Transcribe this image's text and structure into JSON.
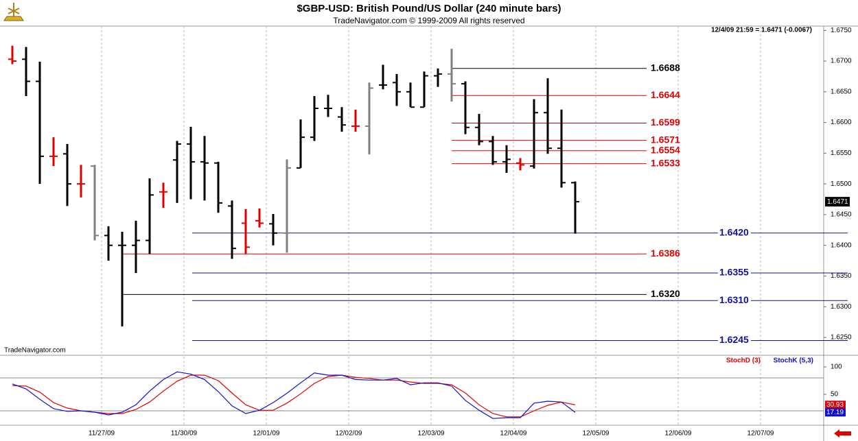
{
  "chart_data": [
    {
      "type": "ohlc",
      "title": "$GBP-USD:  British Pound/US Dollar  (240 minute bars)",
      "subtitle": "TradeNavigator.com © 1999-2009 All rights reserved",
      "quote": "12/4/09 21:59 = 1.6471 (-0.0067)",
      "watermark": "TradeNavigator.com",
      "categories": [
        null,
        null,
        null,
        null,
        null,
        null,
        null,
        null,
        null,
        null,
        null,
        null,
        null,
        null,
        null,
        null,
        null,
        null,
        null,
        null,
        null,
        null,
        null,
        null,
        null,
        null,
        null,
        null,
        null,
        null,
        null,
        null,
        null,
        null,
        null,
        null,
        null,
        null,
        null,
        null,
        null,
        null
      ],
      "x_labels": [
        "11/27/09",
        "11/30/09",
        "12/01/09",
        "12/02/09",
        "12/03/09",
        "12/04/09",
        "12/05/09",
        "12/06/09",
        "12/07/09"
      ],
      "open": [
        1.6703,
        1.6703,
        1.6667,
        1.6545,
        1.6549,
        1.65,
        1.6529,
        1.6416,
        1.64,
        1.64,
        1.6408,
        1.6487,
        1.6539,
        1.6565,
        1.6536,
        1.6534,
        1.6464,
        1.6436,
        1.644,
        1.6435,
        1.642,
        1.6526,
        1.6576,
        1.6623,
        1.6609,
        1.6594,
        1.6594,
        1.6661,
        1.6665,
        1.665,
        1.6625,
        1.6676,
        1.6679,
        1.6663,
        1.6592,
        1.6569,
        1.6536,
        1.6534,
        1.6529,
        1.6616,
        1.6558,
        1.6502
      ],
      "high": [
        1.6725,
        1.6723,
        1.6699,
        1.6576,
        1.6565,
        1.6531,
        1.6531,
        1.6431,
        1.6422,
        1.644,
        1.6509,
        1.6502,
        1.657,
        1.6593,
        1.6578,
        1.6536,
        1.6473,
        1.6459,
        1.646,
        1.6451,
        1.654,
        1.6605,
        1.6643,
        1.6645,
        1.6625,
        1.6621,
        1.6665,
        1.6694,
        1.6679,
        1.6665,
        1.6683,
        1.6688,
        1.672,
        1.6667,
        1.6614,
        1.6578,
        1.6563,
        1.6542,
        1.6638,
        1.6672,
        1.6621,
        1.6504
      ],
      "low": [
        1.6695,
        1.6643,
        1.65,
        1.6529,
        1.6464,
        1.6478,
        1.6408,
        1.6375,
        1.6268,
        1.6355,
        1.6386,
        1.6461,
        1.6469,
        1.6475,
        1.6473,
        1.6453,
        1.6378,
        1.6386,
        1.6429,
        1.64,
        1.6388,
        1.6526,
        1.657,
        1.6609,
        1.6585,
        1.6585,
        1.6548,
        1.6654,
        1.6627,
        1.6625,
        1.6625,
        1.6658,
        1.6634,
        1.6581,
        1.6563,
        1.6531,
        1.6518,
        1.6522,
        1.6525,
        1.6549,
        1.6494,
        1.6419
      ],
      "close": [
        1.67,
        1.6667,
        1.6545,
        1.6545,
        1.65,
        1.65,
        1.6416,
        1.64,
        1.64,
        1.6408,
        1.6482,
        1.6487,
        1.6565,
        1.6536,
        1.6534,
        1.6469,
        1.6395,
        1.6397,
        1.6436,
        1.642,
        1.6526,
        1.6576,
        1.6623,
        1.6623,
        1.6596,
        1.6594,
        1.6656,
        1.6661,
        1.665,
        1.6625,
        1.6676,
        1.6679,
        1.6663,
        1.6592,
        1.6569,
        1.6536,
        1.654,
        1.6531,
        1.6616,
        1.6558,
        1.6502,
        1.6471
      ],
      "bar_colors": [
        "#e00000",
        "#000000",
        "#000000",
        "#e00000",
        "#000000",
        "#e00000",
        "#808080",
        "#000000",
        "#000000",
        "#000000",
        "#000000",
        "#e00000",
        "#000000",
        "#000000",
        "#000000",
        "#000000",
        "#000000",
        "#e00000",
        "#e00000",
        "#000000",
        "#808080",
        "#000000",
        "#000000",
        "#000000",
        "#000000",
        "#e00000",
        "#808080",
        "#000000",
        "#000000",
        "#000000",
        "#000000",
        "#000000",
        "#808080",
        "#000000",
        "#000000",
        "#000000",
        "#000000",
        "#e00000",
        "#000000",
        "#000000",
        "#000000",
        "#000000"
      ],
      "ylim": [
        1.6221,
        1.6757
      ],
      "yticks": [
        {
          "value": 1.625,
          "label": "1.6250"
        },
        {
          "value": 1.63,
          "label": "1.6300"
        },
        {
          "value": 1.635,
          "label": "1.6350"
        },
        {
          "value": 1.64,
          "label": "1.6400"
        },
        {
          "value": 1.645,
          "label": "1.6450"
        },
        {
          "value": 1.65,
          "label": "1.6500"
        },
        {
          "value": 1.655,
          "label": "1.6550"
        },
        {
          "value": 1.66,
          "label": "1.6600"
        },
        {
          "value": 1.665,
          "label": "1.6650"
        },
        {
          "value": 1.67,
          "label": "1.6700"
        },
        {
          "value": 1.675,
          "label": "1.6750"
        }
      ],
      "levels": {
        "values": [
          1.6688,
          1.6644,
          1.6599,
          1.6571,
          1.6554,
          1.6533,
          1.642,
          1.6386,
          1.6355,
          1.632,
          1.631,
          1.6245
        ],
        "value_labels": [
          "1.6688",
          "1.6644",
          "1.6599",
          "1.6571",
          "1.6554",
          "1.6533",
          "1.6420",
          "1.6386",
          "1.6355",
          "1.6320",
          "1.6310",
          "1.6245"
        ],
        "colors": [
          "#000000",
          "#e00000",
          "#e00000",
          "#e00000",
          "#e00000",
          "#e00000",
          "#1010a0",
          "#e00000",
          "#1010a0",
          "#000000",
          "#1010a0",
          "#1010a0"
        ]
      }
    },
    {
      "type": "line",
      "series": [
        {
          "name": "StochD (3)",
          "color": "#e00000",
          "values": [
            66,
            65,
            54,
            35,
            25,
            20,
            17.5,
            15,
            15,
            22.5,
            36,
            56,
            74,
            85,
            85,
            75,
            52.5,
            31,
            21,
            21,
            34,
            51,
            70,
            82.5,
            85,
            81,
            79,
            76,
            76,
            72.5,
            70,
            70,
            67.5,
            52.5,
            31,
            15,
            9,
            9,
            20,
            30,
            36,
            30.93
          ]
        },
        {
          "name": "StochK (5,3)",
          "color": "#1010d0",
          "values": [
            69,
            60,
            41,
            24,
            19,
            20,
            17.5,
            12.5,
            17.5,
            31,
            56,
            77,
            91,
            87,
            77,
            55,
            29,
            15,
            21,
            35,
            52,
            71,
            89,
            85,
            85,
            77,
            76,
            76,
            79,
            67.5,
            71,
            71,
            65,
            39,
            21,
            6,
            7.5,
            7.5,
            34,
            37.5,
            36,
            17.19
          ]
        }
      ],
      "ylim": [
        -6.25,
        118.75
      ],
      "yticks": [
        50,
        100
      ],
      "hlines": [
        20,
        80
      ]
    }
  ]
}
